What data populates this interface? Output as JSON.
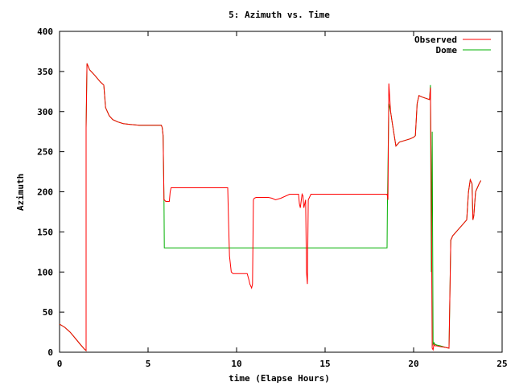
{
  "chart_data": {
    "type": "line",
    "title": "5: Azimuth vs. Time",
    "xlabel": "time (Elapse Hours)",
    "ylabel": "Azimuth",
    "xlim": [
      0,
      25
    ],
    "ylim": [
      0,
      400
    ],
    "xticks": [
      0,
      5,
      10,
      15,
      20,
      25
    ],
    "yticks": [
      0,
      50,
      100,
      150,
      200,
      250,
      300,
      350,
      400
    ],
    "grid": false,
    "legend": "top-right",
    "series": [
      {
        "name": "Observed",
        "color": "#ff0000",
        "x": [
          0,
          0.3,
          0.6,
          0.9,
          1.2,
          1.4,
          1.5,
          1.5,
          1.55,
          1.7,
          2.0,
          2.3,
          2.5,
          2.6,
          2.8,
          3.0,
          3.3,
          3.6,
          4.0,
          4.5,
          5.0,
          5.5,
          5.75,
          5.8,
          5.85,
          5.9,
          5.92,
          6.0,
          6.1,
          6.2,
          6.25,
          6.3,
          7.0,
          8.0,
          9.0,
          9.5,
          9.55,
          9.6,
          9.7,
          9.8,
          10.0,
          10.3,
          10.6,
          10.7,
          10.75,
          10.85,
          10.9,
          10.95,
          11.0,
          11.1,
          11.5,
          11.8,
          12.0,
          12.2,
          12.5,
          13.0,
          13.4,
          13.5,
          13.55,
          13.6,
          13.7,
          13.75,
          13.8,
          13.9,
          13.95,
          14.0,
          14.05,
          14.2,
          14.5,
          15.0,
          16.0,
          17.0,
          18.0,
          18.5,
          18.55,
          18.6,
          18.7,
          18.8,
          19.0,
          19.2,
          19.5,
          19.8,
          20.0,
          20.1,
          20.2,
          20.3,
          20.5,
          20.9,
          20.95,
          21.0,
          21.05,
          21.1,
          21.15,
          21.2,
          21.3,
          21.5,
          21.8,
          22.0,
          22.1,
          22.15,
          22.2,
          22.4,
          22.6,
          22.8,
          23.0,
          23.1,
          23.2,
          23.3,
          23.35,
          23.4,
          23.5,
          23.7,
          23.8
        ],
        "y": [
          35,
          31,
          25,
          17,
          9,
          4,
          2,
          280,
          360,
          352,
          345,
          337,
          333,
          305,
          295,
          290,
          287,
          285,
          284,
          283,
          283,
          283,
          283,
          280,
          270,
          190,
          190,
          188,
          188,
          188,
          200,
          205,
          205,
          205,
          205,
          205,
          160,
          120,
          100,
          98,
          98,
          98,
          98,
          90,
          85,
          80,
          85,
          190,
          192,
          193,
          193,
          193,
          192,
          190,
          192,
          197,
          197,
          197,
          185,
          180,
          197,
          195,
          180,
          190,
          100,
          85,
          190,
          197,
          197,
          197,
          197,
          197,
          197,
          197,
          190,
          335,
          300,
          285,
          257,
          262,
          264,
          266,
          268,
          270,
          310,
          320,
          318,
          315,
          330,
          200,
          5,
          3,
          10,
          8,
          8,
          7,
          6,
          5,
          140,
          142,
          145,
          150,
          155,
          160,
          165,
          200,
          215,
          210,
          165,
          170,
          200,
          210,
          214
        ]
      },
      {
        "name": "Dome",
        "color": "#00b000",
        "x": [
          0,
          0.3,
          0.6,
          0.9,
          1.2,
          1.4,
          1.5,
          1.5,
          1.55,
          1.7,
          2.0,
          2.3,
          2.5,
          2.6,
          2.8,
          3.0,
          3.3,
          3.6,
          4.0,
          4.5,
          5.0,
          5.5,
          5.75,
          5.8,
          5.85,
          5.9,
          5.92,
          6.0,
          18.5,
          18.52,
          18.55,
          18.6,
          18.7,
          18.8,
          19.0,
          19.2,
          19.5,
          19.8,
          20.0,
          20.1,
          20.2,
          20.3,
          20.5,
          20.9,
          20.95,
          21.0,
          21.05,
          21.1,
          21.15,
          21.2,
          21.3,
          21.5,
          21.8,
          22.0,
          22.1,
          22.15,
          22.2,
          22.4,
          22.6,
          22.8,
          23.0,
          23.1,
          23.2,
          23.3,
          23.35,
          23.4,
          23.5,
          23.7,
          23.8
        ],
        "y": [
          35,
          31,
          25,
          17,
          9,
          4,
          2,
          280,
          360,
          352,
          345,
          337,
          333,
          305,
          295,
          290,
          287,
          285,
          284,
          283,
          283,
          283,
          283,
          280,
          270,
          190,
          130,
          130,
          130,
          180,
          230,
          310,
          300,
          285,
          257,
          262,
          264,
          266,
          268,
          270,
          310,
          320,
          318,
          315,
          333,
          100,
          275,
          10,
          12,
          10,
          9,
          8,
          6,
          5,
          140,
          142,
          145,
          150,
          155,
          160,
          165,
          200,
          215,
          210,
          165,
          170,
          200,
          210,
          214
        ]
      }
    ]
  }
}
